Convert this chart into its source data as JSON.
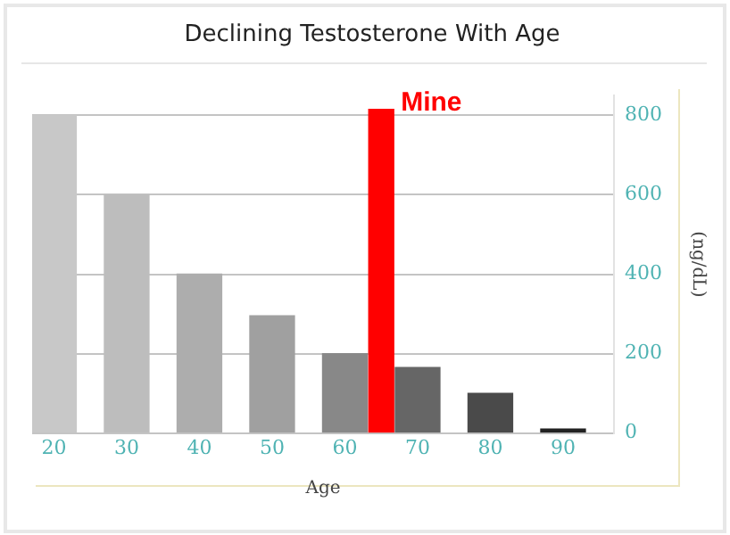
{
  "chart_data": {
    "type": "bar",
    "title": "Declining Testosterone With Age",
    "xlabel": "Age",
    "ylabel": "(ng/dL)",
    "xlim": [
      17,
      97
    ],
    "xticks": [
      20,
      30,
      40,
      50,
      60,
      70,
      80,
      90
    ],
    "ylim": [
      0,
      850
    ],
    "yticks": [
      0,
      200,
      400,
      600,
      800
    ],
    "grid": "y",
    "legend": false,
    "series": [
      {
        "x": [
          20,
          30,
          40,
          50,
          60,
          70,
          80,
          90
        ],
        "values": [
          800,
          600,
          400,
          295,
          200,
          165,
          100,
          10
        ],
        "colors": [
          "#c8c8c8",
          "#bdbdbd",
          "#adadad",
          "#a0a0a0",
          "#888888",
          "#666666",
          "#4a4a4a",
          "#222222"
        ]
      },
      {
        "name": "Mine",
        "x": [
          65
        ],
        "values": [
          815
        ],
        "color": "#ff0000"
      }
    ]
  }
}
